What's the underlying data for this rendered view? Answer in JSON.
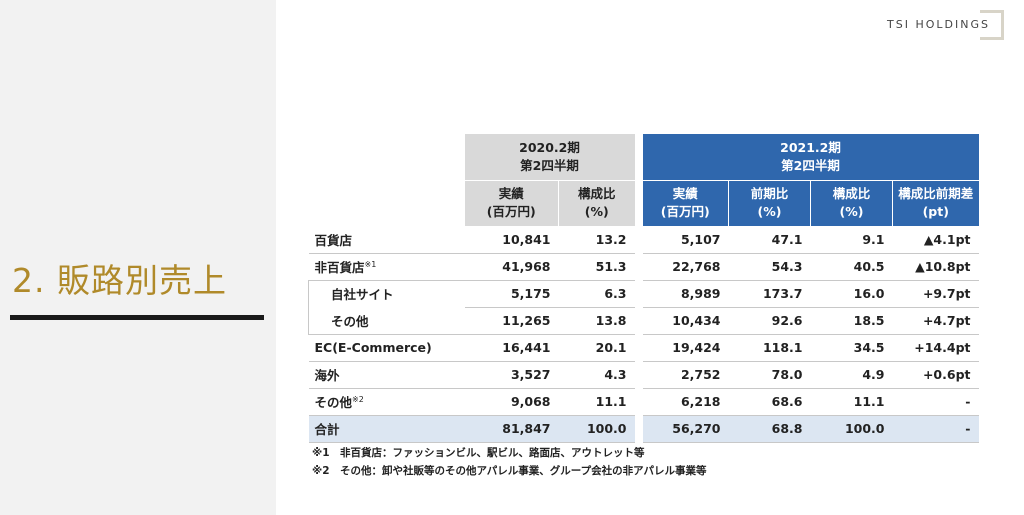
{
  "section": {
    "title": "2. 販路別売上"
  },
  "brand": {
    "logo_text": "TSI HOLDINGS"
  },
  "table": {
    "period_prev": [
      "2020.2期",
      "第2四半期"
    ],
    "period_curr": [
      "2021.2期",
      "第2四半期"
    ],
    "cols_prev": [
      {
        "l1": "実績",
        "l2": "(百万円)"
      },
      {
        "l1": "構成比",
        "l2": "(%)"
      }
    ],
    "cols_curr": [
      {
        "l1": "実績",
        "l2": "(百万円)"
      },
      {
        "l1": "前期比",
        "l2": "(%)"
      },
      {
        "l1": "構成比",
        "l2": "(%)"
      },
      {
        "l1": "構成比前期差",
        "l2": "(pt)"
      }
    ],
    "rows": [
      {
        "label": "百貨店",
        "sup": "",
        "prev": [
          "10,841",
          "13.2"
        ],
        "curr": [
          "5,107",
          "47.1",
          "9.1",
          "▲4.1pt"
        ]
      },
      {
        "label": "非百貨店",
        "sup": "※1",
        "prev": [
          "41,968",
          "51.3"
        ],
        "curr": [
          "22,768",
          "54.3",
          "40.5",
          "▲10.8pt"
        ]
      },
      {
        "label": "自社サイト",
        "sup": "",
        "prev": [
          "5,175",
          "6.3"
        ],
        "curr": [
          "8,989",
          "173.7",
          "16.0",
          "+9.7pt"
        ]
      },
      {
        "label": "その他",
        "sup": "",
        "prev": [
          "11,265",
          "13.8"
        ],
        "curr": [
          "10,434",
          "92.6",
          "18.5",
          "+4.7pt"
        ]
      },
      {
        "label": "EC(E-Commerce)",
        "sup": "",
        "prev": [
          "16,441",
          "20.1"
        ],
        "curr": [
          "19,424",
          "118.1",
          "34.5",
          "+14.4pt"
        ]
      },
      {
        "label": "海外",
        "sup": "",
        "prev": [
          "3,527",
          "4.3"
        ],
        "curr": [
          "2,752",
          "78.0",
          "4.9",
          "+0.6pt"
        ]
      },
      {
        "label": "その他",
        "sup": "※2",
        "prev": [
          "9,068",
          "11.1"
        ],
        "curr": [
          "6,218",
          "68.6",
          "11.1",
          "-"
        ]
      },
      {
        "label": "合計",
        "sup": "",
        "prev": [
          "81,847",
          "100.0"
        ],
        "curr": [
          "56,270",
          "68.8",
          "100.0",
          "-"
        ]
      }
    ]
  },
  "notes": [
    "※1　非百貨店：ファッションビル、駅ビル、路面店、アウトレット等",
    "※2　その他：卸や社販等のその他アパレル事業、グループ会社の非アパレル事業等"
  ],
  "colors": {
    "accent_gold": "#b08a2a",
    "header_blue": "#2f67ad",
    "total_row": "#dce6f2"
  }
}
